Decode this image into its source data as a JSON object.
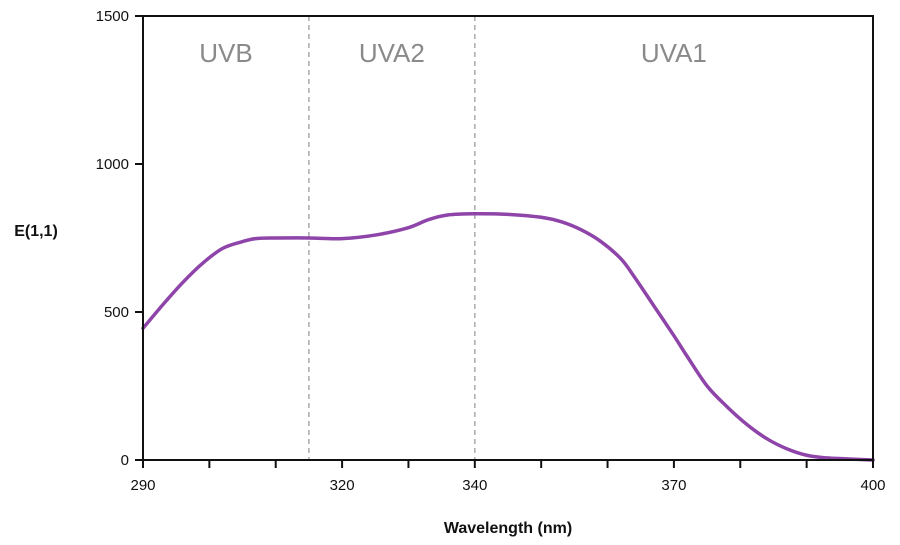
{
  "chart_data": {
    "type": "line",
    "title": "",
    "xlabel": "Wavelength (nm)",
    "ylabel": "E(1,1)",
    "xlim": [
      290,
      400
    ],
    "ylim": [
      0,
      1500
    ],
    "x_ticks": [
      290,
      320,
      340,
      370,
      400
    ],
    "x_minor_ticks": [
      300,
      310,
      330,
      350,
      360,
      380,
      390
    ],
    "y_ticks": [
      0,
      500,
      1000,
      1500
    ],
    "grid": false,
    "legend": "none",
    "line_color": "#8e44a8",
    "divider_color": "#aaaaaa",
    "region_label_color": "#8a8a8a",
    "regions": [
      {
        "label": "UVB",
        "from": 290,
        "to": 315
      },
      {
        "label": "UVA2",
        "from": 315,
        "to": 340
      },
      {
        "label": "UVA1",
        "from": 340,
        "to": 400
      }
    ],
    "dividers": [
      315,
      340
    ],
    "series": [
      {
        "x": [
          290,
          293,
          296,
          299,
          302,
          305,
          307,
          310,
          315,
          320,
          325,
          330,
          333,
          336,
          340,
          345,
          350,
          353,
          356,
          359,
          362,
          364,
          367,
          370,
          372,
          375,
          378,
          381,
          384,
          387,
          390,
          393,
          396,
          400
        ],
        "y": [
          445,
          525,
          600,
          665,
          715,
          738,
          748,
          750,
          750,
          748,
          760,
          785,
          812,
          828,
          832,
          830,
          820,
          805,
          778,
          738,
          680,
          620,
          520,
          420,
          350,
          250,
          180,
          120,
          72,
          38,
          16,
          7,
          4,
          0
        ]
      }
    ]
  }
}
